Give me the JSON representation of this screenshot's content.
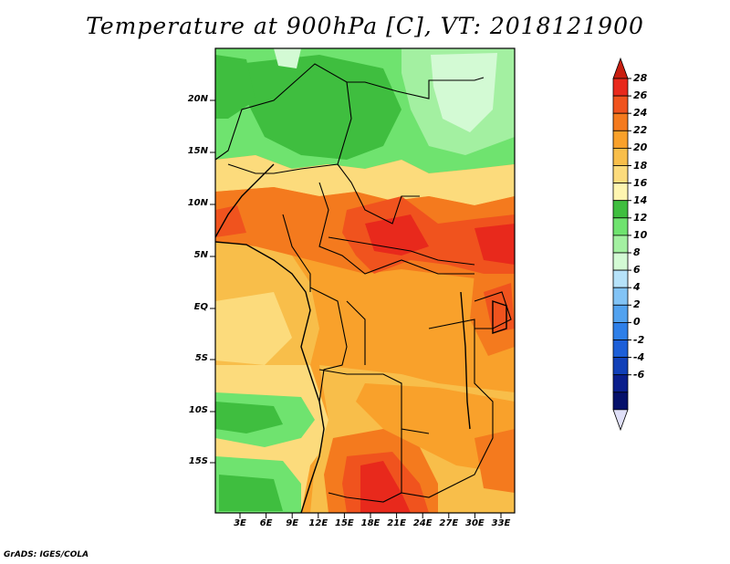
{
  "title": "Temperature at 900hPa [C], VT: 2018121900",
  "footer": "GrADS: IGES/COLA",
  "map": {
    "lat_labels": [
      "20N",
      "15N",
      "10N",
      "5N",
      "EQ",
      "5S",
      "10S",
      "15S"
    ],
    "lon_labels": [
      "3E",
      "6E",
      "9E",
      "12E",
      "15E",
      "18E",
      "21E",
      "24E",
      "27E",
      "30E",
      "33E"
    ]
  },
  "colorbar": {
    "labels": [
      "28",
      "26",
      "24",
      "22",
      "20",
      "18",
      "16",
      "14",
      "12",
      "10",
      "8",
      "6",
      "4",
      "2",
      "0",
      "-2",
      "-4",
      "-6"
    ],
    "colors": [
      "#e8291c",
      "#f0531e",
      "#f47a1e",
      "#f9a12b",
      "#f8be4a",
      "#fcdb7c",
      "#fef5b0",
      "#3fbe3f",
      "#6fe36f",
      "#a3f0a1",
      "#d3fad4",
      "#b6e2f9",
      "#82c3f5",
      "#52a2ef",
      "#2e7fe8",
      "#1d5fd8",
      "#1140b8",
      "#0a1e8c",
      "#05106a"
    ],
    "top_arrow_color": "#c81e10",
    "bottom_arrow_color": "#e0e0f8"
  }
}
